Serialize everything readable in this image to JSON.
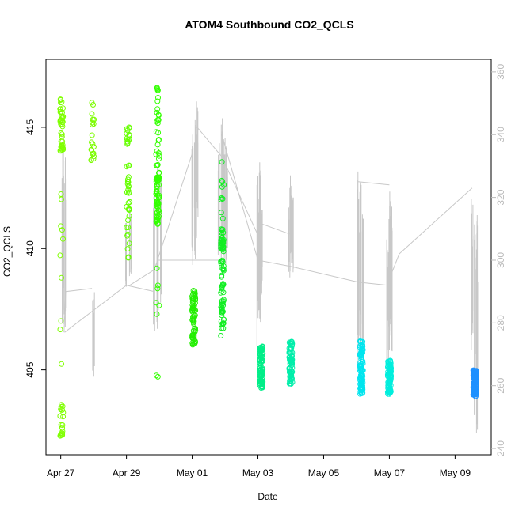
{
  "chart_data": {
    "type": "scatter",
    "title": "ATOM4 Southbound CO2_QCLS",
    "xlabel": "Date",
    "ylabel": "CO2_QCLS",
    "x_ticks": [
      {
        "value": 0,
        "label": "Apr 27"
      },
      {
        "value": 2,
        "label": "Apr 29"
      },
      {
        "value": 4,
        "label": "May 01"
      },
      {
        "value": 6,
        "label": "May 03"
      },
      {
        "value": 8,
        "label": "May 05"
      },
      {
        "value": 10,
        "label": "May 07"
      },
      {
        "value": 12,
        "label": "May 09"
      }
    ],
    "xlim": [
      -0.45,
      13.1
    ],
    "ylim": [
      401.5,
      417.8
    ],
    "y_ticks": [
      405,
      410,
      415
    ],
    "y_ticks_labels": [
      "405",
      "410",
      "415"
    ],
    "y2_ticks": [
      240,
      260,
      280,
      300,
      320,
      340,
      360
    ],
    "y2_ticks_labels": [
      "240",
      "260",
      "280",
      "300",
      "320",
      "340",
      "360"
    ],
    "y2lim": [
      238,
      364
    ],
    "grid": false,
    "scatter_series": {
      "marker": "open-circle",
      "flights": [
        {
          "x": 0.03,
          "color": "#7FFF00",
          "clusters": [
            [
              416.4,
              414.0,
              40
            ],
            [
              412.5,
              409.5,
              6
            ],
            [
              409.0,
              404.6,
              4
            ],
            [
              403.6,
              402.0,
              18
            ]
          ]
        },
        {
          "x": 0.97,
          "color": "#7CFC00",
          "clusters": [
            [
              416.2,
              413.6,
              20
            ]
          ]
        },
        {
          "x": 2.05,
          "color": "#66FF00",
          "clusters": [
            [
              415.0,
              413.8,
              14
            ],
            [
              413.5,
              411.5,
              22
            ],
            [
              411.5,
              409.6,
              10
            ]
          ]
        },
        {
          "x": 2.95,
          "color": "#33FF00",
          "clusters": [
            [
              416.9,
              413.0,
              30
            ],
            [
              413.0,
              411.0,
              60
            ],
            [
              410.0,
              406.7,
              6
            ],
            [
              404.8,
              404.7,
              2
            ]
          ]
        },
        {
          "x": 4.05,
          "color": "#22EE00",
          "clusters": [
            [
              408.3,
              406.0,
              70
            ]
          ]
        },
        {
          "x": 4.92,
          "color": "#11EE22",
          "clusters": [
            [
              413.6,
              411.0,
              10
            ],
            [
              410.8,
              408.2,
              50
            ],
            [
              408.2,
              406.4,
              30
            ]
          ]
        },
        {
          "x": 6.1,
          "color": "#00EE88",
          "clusters": [
            [
              406.0,
              404.2,
              90
            ]
          ]
        },
        {
          "x": 7.0,
          "color": "#00EEAA",
          "clusters": [
            [
              406.2,
              404.4,
              80
            ]
          ]
        },
        {
          "x": 9.15,
          "color": "#00E5EE",
          "clusters": [
            [
              406.2,
              404.0,
              100
            ]
          ]
        },
        {
          "x": 10.0,
          "color": "#00EEDD",
          "clusters": [
            [
              405.4,
              404.0,
              80
            ]
          ]
        },
        {
          "x": 12.6,
          "color": "#1E90FF",
          "clusters": [
            [
              405.0,
              403.9,
              100
            ]
          ]
        }
      ]
    },
    "line_series": {
      "color": "#c8c8c8",
      "vertical_bursts": [
        {
          "x": 0.06,
          "lo": 275,
          "hi": 343
        },
        {
          "x": 0.12,
          "lo": 275,
          "hi": 335
        },
        {
          "x": 1.0,
          "lo": 262,
          "hi": 290
        },
        {
          "x": 1.97,
          "lo": 290,
          "hi": 312
        },
        {
          "x": 2.12,
          "lo": 292,
          "hi": 318
        },
        {
          "x": 2.85,
          "lo": 275,
          "hi": 326
        },
        {
          "x": 2.95,
          "lo": 278,
          "hi": 332
        },
        {
          "x": 3.05,
          "lo": 285,
          "hi": 328
        },
        {
          "x": 4.0,
          "lo": 298,
          "hi": 342
        },
        {
          "x": 4.08,
          "lo": 300,
          "hi": 350
        },
        {
          "x": 4.15,
          "lo": 305,
          "hi": 352
        },
        {
          "x": 4.82,
          "lo": 298,
          "hi": 340
        },
        {
          "x": 4.9,
          "lo": 296,
          "hi": 346
        },
        {
          "x": 4.98,
          "lo": 300,
          "hi": 344
        },
        {
          "x": 5.05,
          "lo": 298,
          "hi": 337
        },
        {
          "x": 6.0,
          "lo": 270,
          "hi": 328
        },
        {
          "x": 6.06,
          "lo": 280,
          "hi": 332
        },
        {
          "x": 6.12,
          "lo": 288,
          "hi": 320
        },
        {
          "x": 6.95,
          "lo": 292,
          "hi": 318
        },
        {
          "x": 7.0,
          "lo": 300,
          "hi": 328
        },
        {
          "x": 7.05,
          "lo": 296,
          "hi": 320
        },
        {
          "x": 9.05,
          "lo": 262,
          "hi": 330
        },
        {
          "x": 9.12,
          "lo": 265,
          "hi": 328
        },
        {
          "x": 9.2,
          "lo": 268,
          "hi": 318
        },
        {
          "x": 9.95,
          "lo": 262,
          "hi": 316
        },
        {
          "x": 10.0,
          "lo": 268,
          "hi": 326
        },
        {
          "x": 10.06,
          "lo": 270,
          "hi": 322
        },
        {
          "x": 12.52,
          "lo": 270,
          "hi": 322
        },
        {
          "x": 12.6,
          "lo": 250,
          "hi": 318
        },
        {
          "x": 12.68,
          "lo": 245,
          "hi": 315
        }
      ],
      "transits": [
        [
          [
            0.1,
            277
          ],
          [
            0.15,
            290
          ],
          [
            0.95,
            291
          ]
        ],
        [
          [
            0.12,
            277
          ],
          [
            2.0,
            292
          ],
          [
            2.85,
            290
          ]
        ],
        [
          [
            2.1,
            292
          ],
          [
            2.85,
            297
          ],
          [
            4.0,
            334
          ]
        ],
        [
          [
            2.95,
            300
          ],
          [
            4.0,
            300
          ],
          [
            4.82,
            300
          ]
        ],
        [
          [
            4.1,
            343
          ],
          [
            4.9,
            333
          ],
          [
            6.0,
            308
          ]
        ],
        [
          [
            4.9,
            340
          ],
          [
            6.0,
            300
          ],
          [
            7.0,
            298
          ]
        ],
        [
          [
            6.0,
            312
          ],
          [
            7.05,
            308
          ]
        ],
        [
          [
            7.0,
            298
          ],
          [
            9.05,
            293
          ],
          [
            9.95,
            292
          ]
        ],
        [
          [
            9.05,
            325
          ],
          [
            10.0,
            324
          ]
        ],
        [
          [
            10.0,
            294
          ],
          [
            10.3,
            302
          ],
          [
            12.52,
            323
          ]
        ]
      ]
    }
  }
}
